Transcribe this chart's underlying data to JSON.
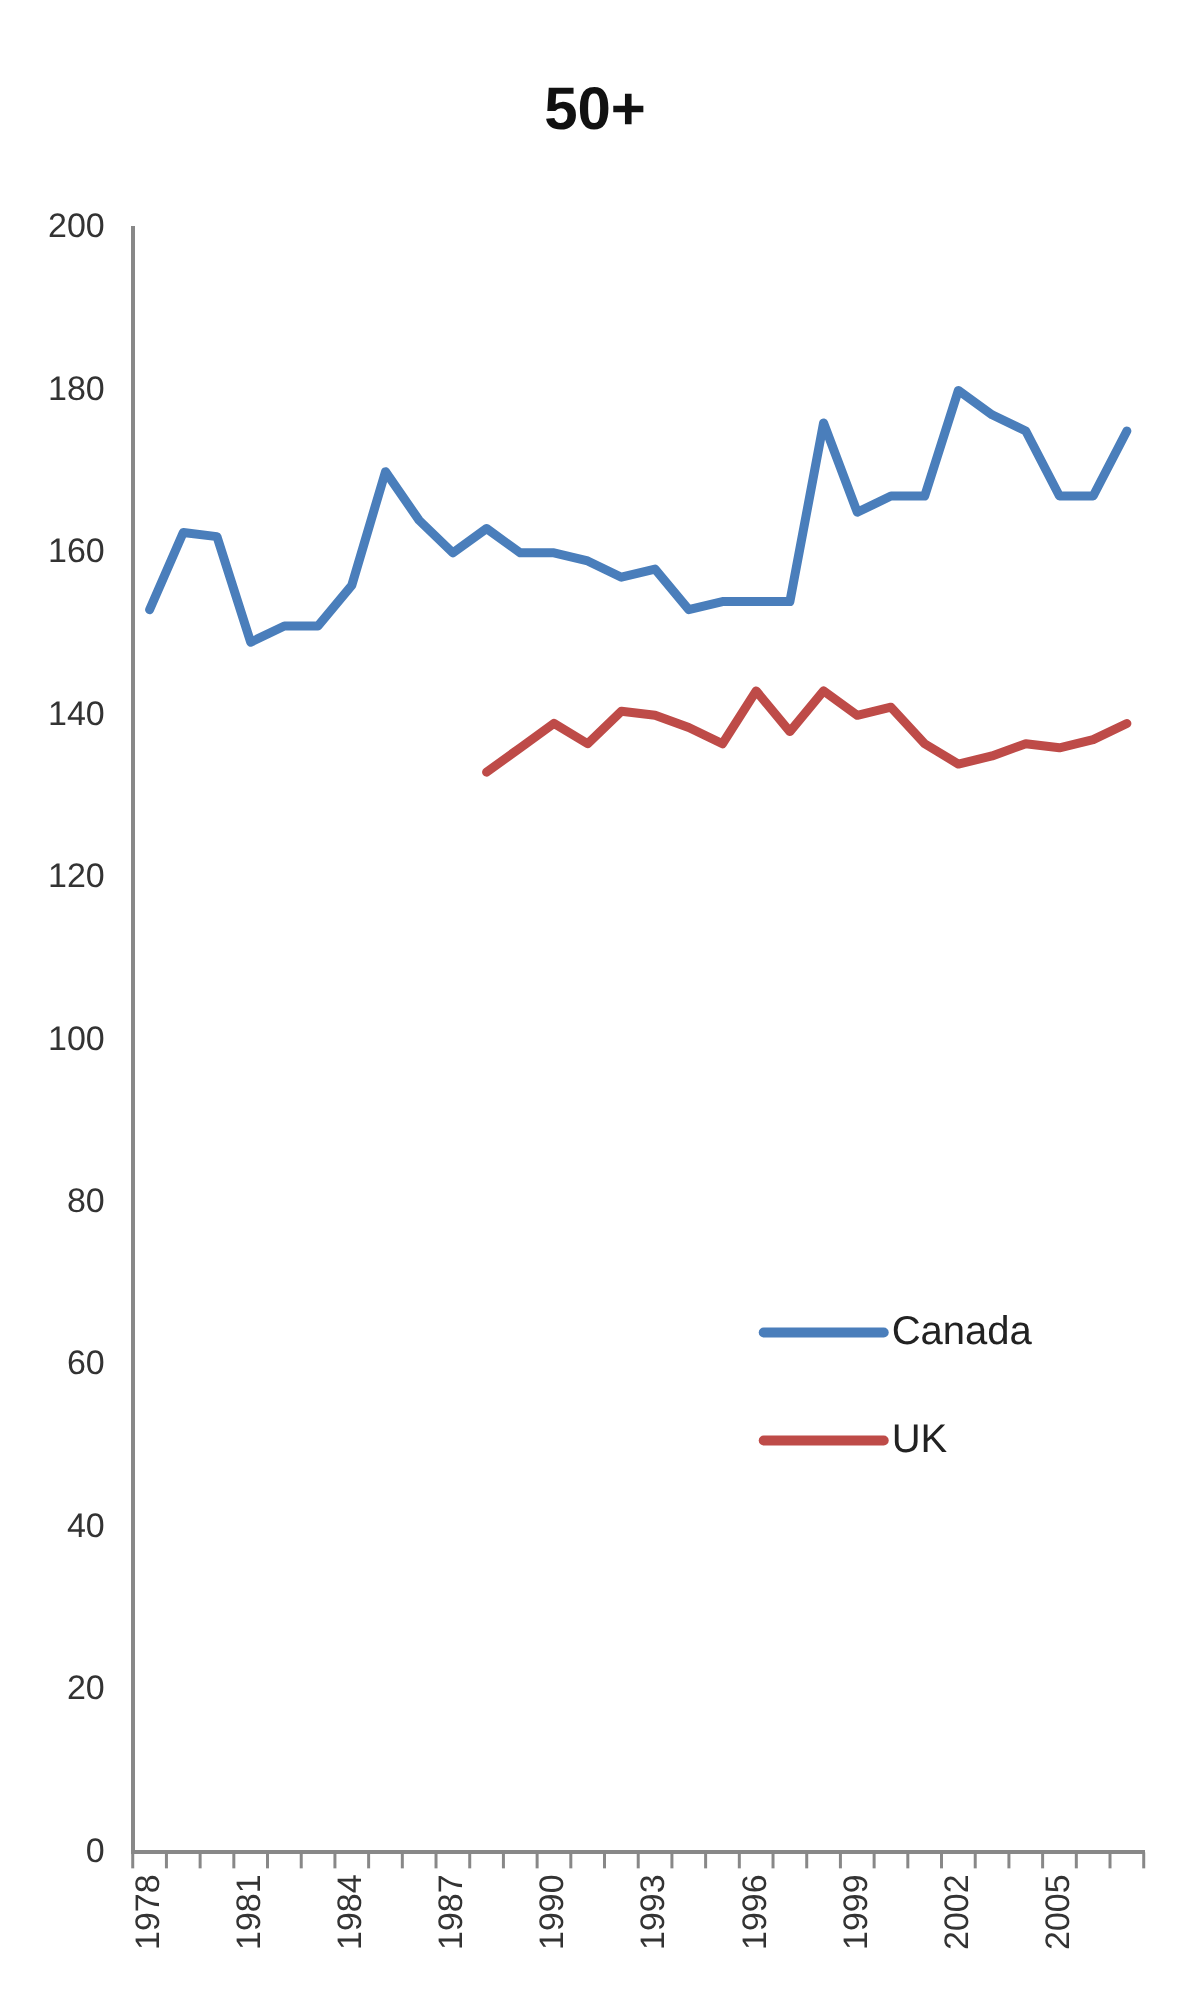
{
  "chart_data": {
    "type": "line",
    "title": "50+",
    "categories": [
      "1978",
      null,
      null,
      "1981",
      null,
      null,
      "1984",
      null,
      null,
      "1987",
      null,
      null,
      "1990",
      null,
      null,
      "1993",
      null,
      null,
      "1996",
      null,
      null,
      "1999",
      null,
      null,
      "2002",
      null,
      null,
      "2005",
      null,
      null
    ],
    "series": [
      {
        "name": "Canada",
        "color": "#4a7ebb",
        "values": [
          153,
          162.5,
          162,
          149,
          151,
          151,
          156,
          170,
          164,
          160,
          163,
          160,
          160,
          159,
          157,
          158,
          153,
          154,
          154,
          154,
          176,
          165,
          167,
          167,
          180,
          177,
          175,
          167,
          167,
          175
        ]
      },
      {
        "name": "UK",
        "color": "#be4b48",
        "values": [
          null,
          null,
          null,
          null,
          null,
          null,
          null,
          null,
          null,
          null,
          133,
          136,
          139,
          136.5,
          140.5,
          140,
          138.5,
          136.5,
          143,
          138,
          143,
          140,
          141,
          136.5,
          134,
          135,
          136.5,
          136,
          137,
          139
        ]
      }
    ],
    "ylim": [
      0,
      200
    ],
    "yticks": [
      0,
      20,
      40,
      60,
      80,
      100,
      120,
      140,
      160,
      180,
      200
    ],
    "grid": false,
    "legend": "right",
    "marker": "none",
    "line_style": "solid"
  }
}
